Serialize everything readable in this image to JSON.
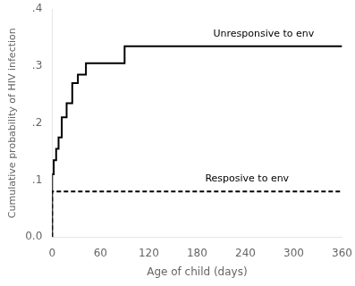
{
  "chart_data": {
    "type": "step",
    "xlabel": "Age of child (days)",
    "ylabel": "Cumulative probability of HIV infection",
    "xlim": [
      0,
      360
    ],
    "ylim": [
      0.0,
      0.4
    ],
    "xticks": [
      0,
      60,
      120,
      180,
      240,
      300,
      360
    ],
    "yticks": [
      {
        "value": 0.0,
        "label": "0.0"
      },
      {
        "value": 0.1,
        "label": ".1"
      },
      {
        "value": 0.2,
        "label": ".2"
      },
      {
        "value": 0.3,
        "label": ".3"
      },
      {
        "value": 0.4,
        "label": ".4"
      }
    ],
    "grid": false,
    "series": [
      {
        "color": "#000000",
        "line_style": "solid",
        "x": [
          0,
          2,
          5,
          8,
          12,
          18,
          25,
          32,
          42,
          55,
          90,
          195,
          360
        ],
        "values": [
          0.0,
          0.11,
          0.135,
          0.155,
          0.175,
          0.21,
          0.235,
          0.27,
          0.285,
          0.305,
          0.305,
          0.335,
          0.335
        ]
      },
      {
        "color": "#000000",
        "line_style": "dashed",
        "x": [
          0,
          8,
          360
        ],
        "values": [
          0.0,
          0.08,
          0.08
        ]
      }
    ],
    "annotations": [
      {
        "text": "Unresponsive to env",
        "x": 200,
        "y": 0.348
      },
      {
        "text": "Resposive to env",
        "x": 190,
        "y": 0.094
      }
    ]
  }
}
